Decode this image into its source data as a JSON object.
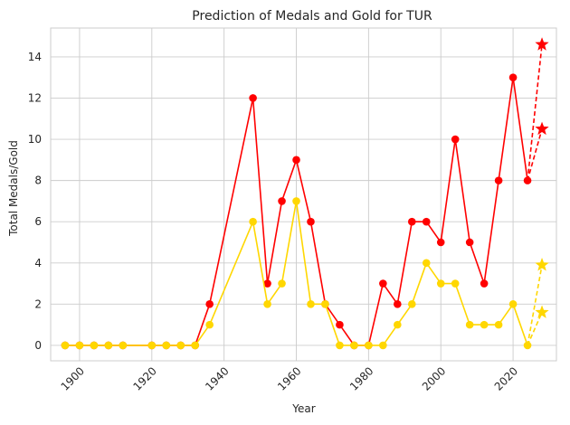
{
  "chart_data": {
    "type": "line",
    "title": "Prediction of Medals and Gold for TUR",
    "xlabel": "Year",
    "ylabel": "Total Medals/Gold",
    "xlim": [
      1892,
      2032
    ],
    "ylim": [
      -0.75,
      15.4
    ],
    "xticks": [
      1900,
      1920,
      1940,
      1960,
      1980,
      2000,
      2020
    ],
    "yticks": [
      0,
      2,
      4,
      6,
      8,
      10,
      12,
      14
    ],
    "grid": true,
    "colors": {
      "medals": "#ff0000",
      "gold": "#ffd700"
    },
    "series": [
      {
        "key": "medals",
        "color": "#ff0000",
        "x": [
          1896,
          1900,
          1904,
          1908,
          1912,
          1920,
          1924,
          1928,
          1932,
          1936,
          1948,
          1952,
          1956,
          1960,
          1964,
          1968,
          1972,
          1976,
          1980,
          1984,
          1988,
          1992,
          1996,
          2000,
          2004,
          2008,
          2012,
          2016,
          2020,
          2024
        ],
        "y": [
          0,
          0,
          0,
          0,
          0,
          0,
          0,
          0,
          0,
          2,
          12,
          3,
          7,
          9,
          6,
          2,
          1,
          0,
          0,
          3,
          2,
          6,
          6,
          5,
          10,
          5,
          3,
          8,
          13,
          8
        ]
      },
      {
        "key": "gold",
        "color": "#ffd700",
        "x": [
          1896,
          1900,
          1904,
          1908,
          1912,
          1920,
          1924,
          1928,
          1932,
          1936,
          1948,
          1952,
          1956,
          1960,
          1964,
          1968,
          1972,
          1976,
          1980,
          1984,
          1988,
          1992,
          1996,
          2000,
          2004,
          2008,
          2012,
          2016,
          2020,
          2024
        ],
        "y": [
          0,
          0,
          0,
          0,
          0,
          0,
          0,
          0,
          0,
          1,
          6,
          2,
          3,
          7,
          2,
          2,
          0,
          0,
          0,
          0,
          1,
          2,
          4,
          3,
          3,
          1,
          1,
          1,
          2,
          0
        ]
      }
    ],
    "predictions": [
      {
        "key": "medals-upper",
        "color": "#ff0000",
        "from": [
          2024,
          8
        ],
        "to": [
          2028,
          14.6
        ]
      },
      {
        "key": "medals-lower",
        "color": "#ff0000",
        "from": [
          2024,
          8
        ],
        "to": [
          2028,
          10.5
        ]
      },
      {
        "key": "gold-upper",
        "color": "#ffd700",
        "from": [
          2024,
          0
        ],
        "to": [
          2028,
          3.9
        ]
      },
      {
        "key": "gold-lower",
        "color": "#ffd700",
        "from": [
          2024,
          0
        ],
        "to": [
          2028,
          1.6
        ]
      }
    ]
  }
}
